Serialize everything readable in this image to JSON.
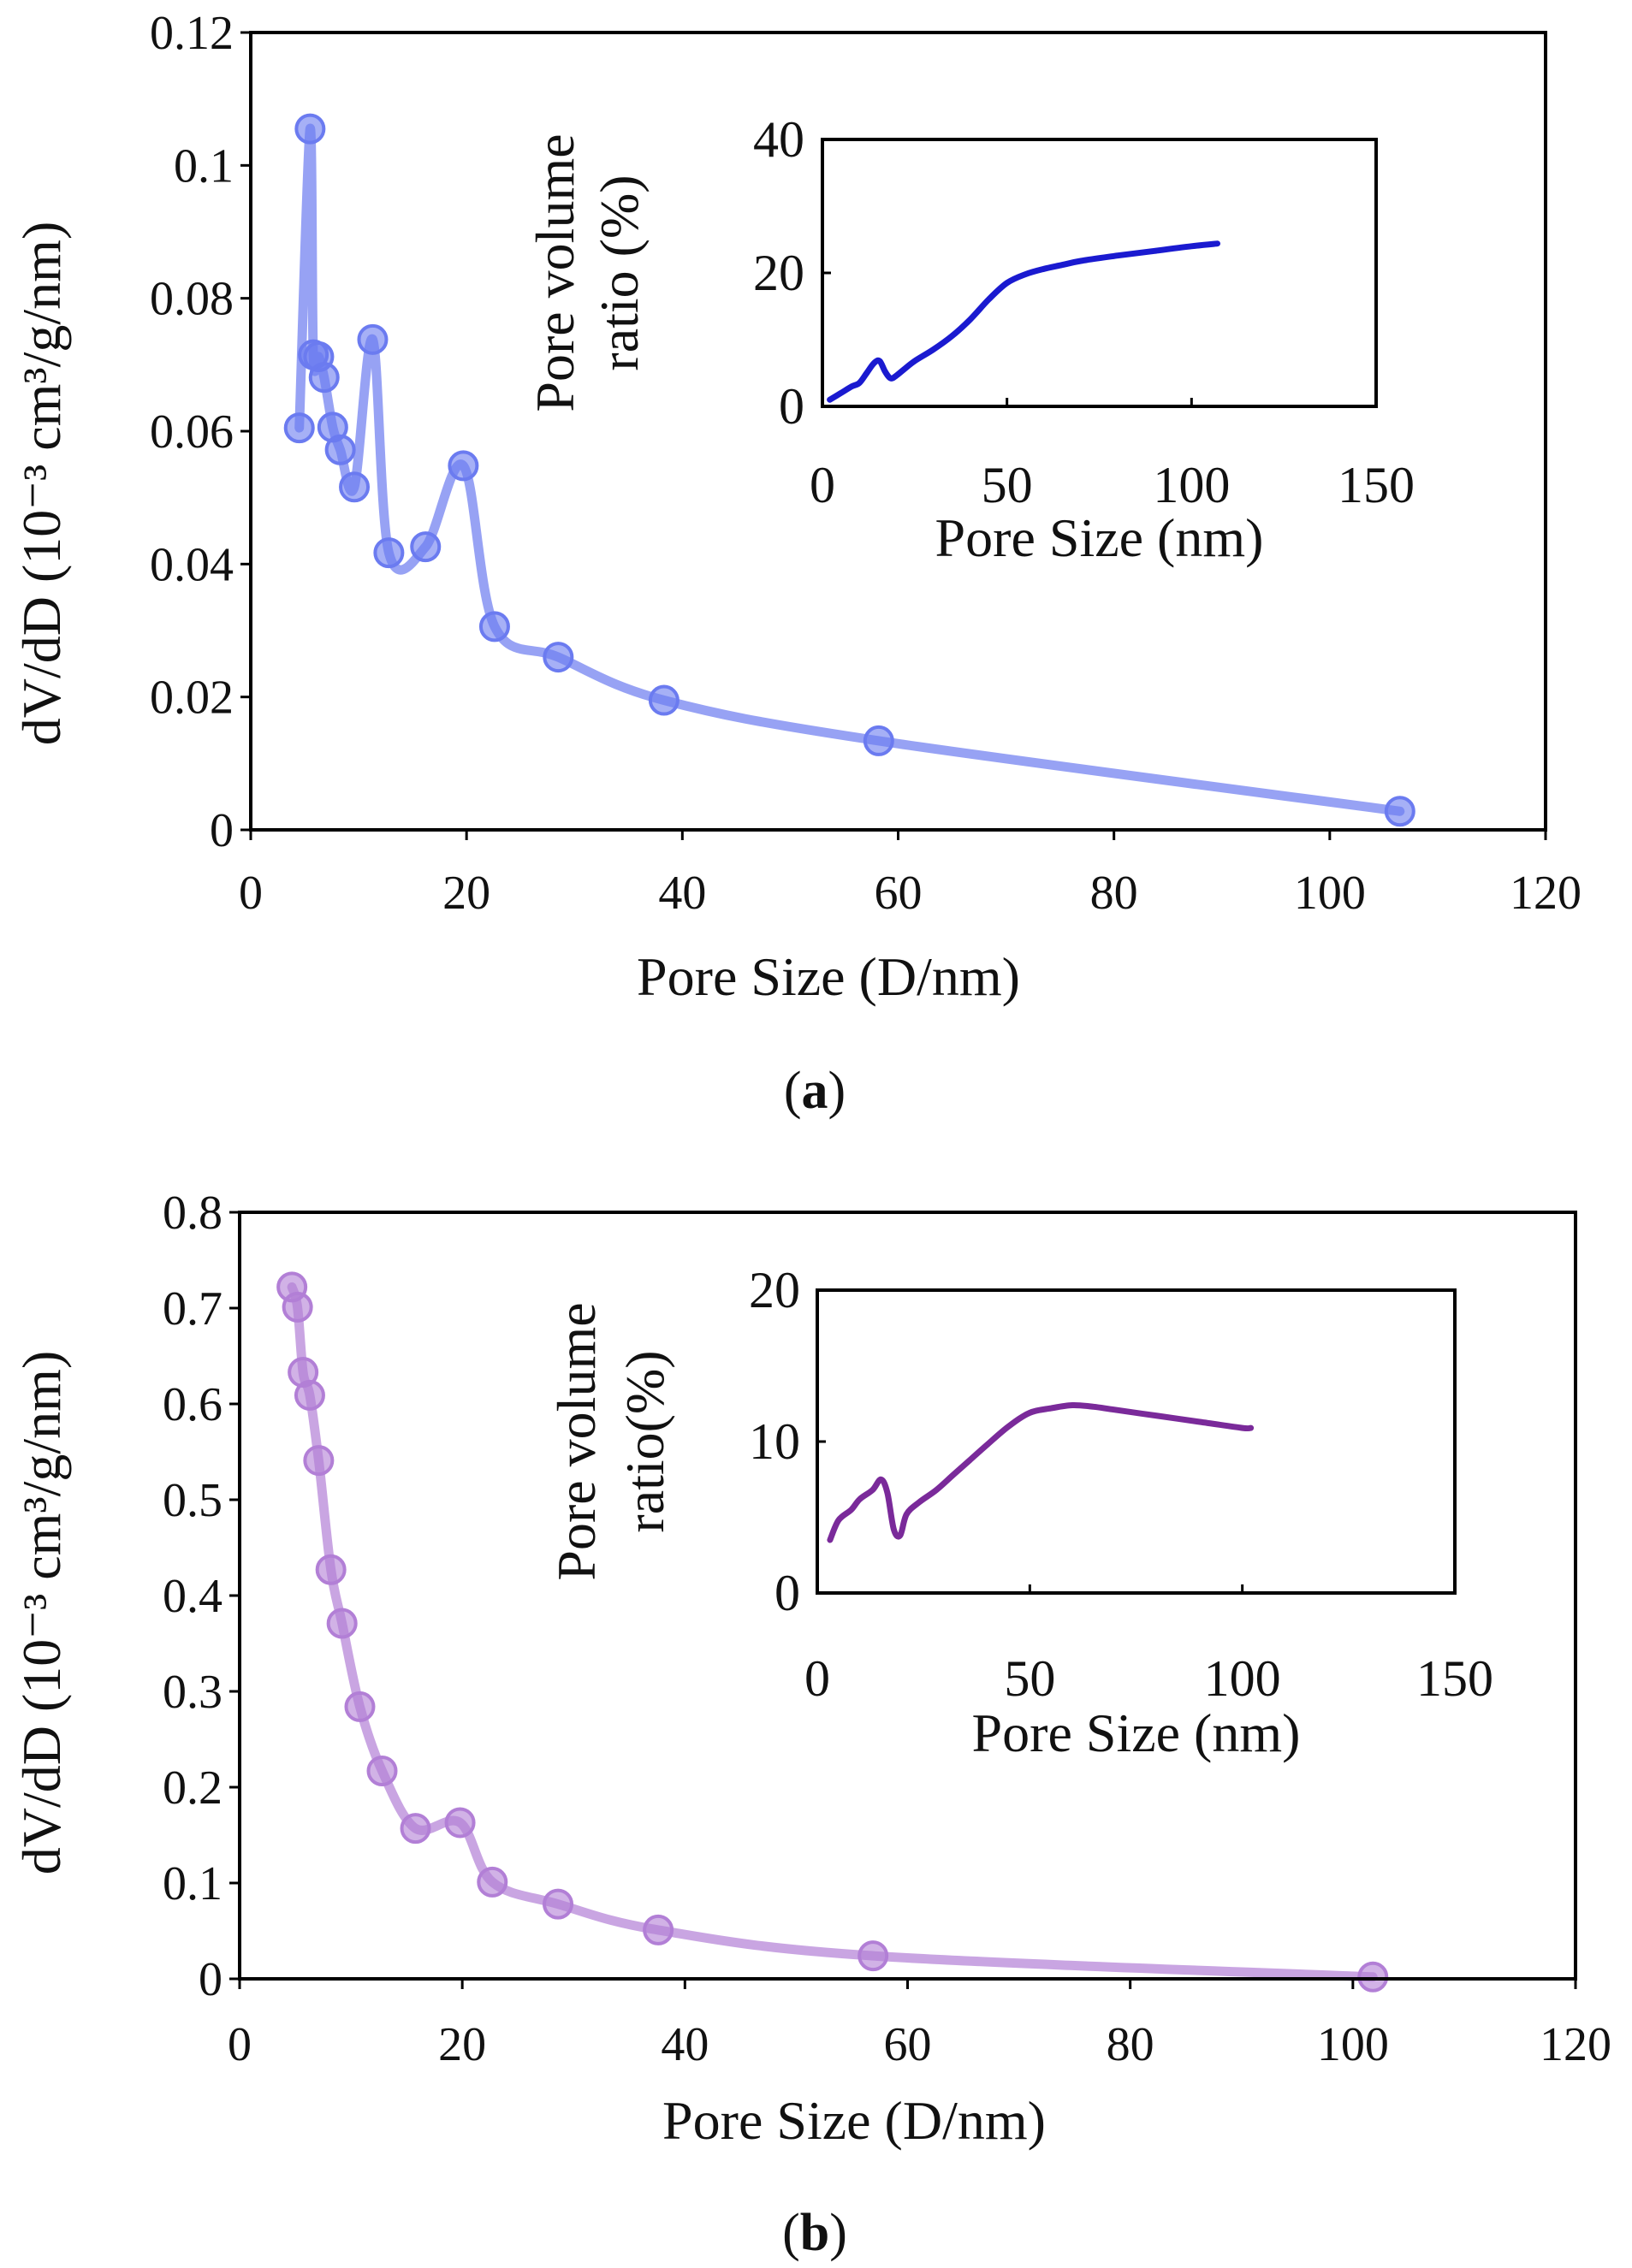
{
  "chart_data": [
    {
      "type": "line",
      "panel": "a",
      "panel_label": "a",
      "xlabel": "Pore Size (D/nm)",
      "ylabel": "dV/dD (10⁻³ cm³/g/nm)",
      "xlim": [
        0,
        120
      ],
      "ylim": [
        0,
        0.12
      ],
      "xticks": [
        0,
        20,
        40,
        60,
        80,
        100,
        120
      ],
      "yticks": [
        0,
        0.02,
        0.04,
        0.06,
        0.08,
        0.1,
        0.12
      ],
      "xtick_labels": [
        "0",
        "20",
        "40",
        "60",
        "80",
        "100",
        "120"
      ],
      "ytick_labels": [
        "0",
        "0.02",
        "0.04",
        "0.06",
        "0.08",
        "0.1",
        "0.12"
      ],
      "color": "#6b7bf0",
      "series": [
        {
          "name": "dV/dD",
          "x": [
            4.5,
            5.5,
            5.8,
            6.3,
            6.8,
            7.6,
            8.3,
            9.6,
            11.3,
            12.8,
            16.2,
            19.7,
            22.6,
            28.5,
            38.3,
            58.2,
            106.5
          ],
          "y": [
            0.0605,
            0.1055,
            0.0715,
            0.0712,
            0.0681,
            0.0606,
            0.0572,
            0.0516,
            0.0738,
            0.0417,
            0.0426,
            0.0548,
            0.0306,
            0.026,
            0.0195,
            0.0134,
            0.0028
          ]
        }
      ],
      "inset": {
        "xlabel": "Pore Size (nm)",
        "ylabel_lines": [
          "Pore volume",
          "ratio (%)"
        ],
        "xlim": [
          0,
          150
        ],
        "ylim": [
          0,
          40
        ],
        "xticks": [
          0,
          50,
          100,
          150
        ],
        "yticks": [
          0,
          20,
          40
        ],
        "xtick_labels": [
          "0",
          "50",
          "100",
          "150"
        ],
        "ytick_labels": [
          "0",
          "20",
          "40"
        ],
        "color": "#1a1ad0",
        "x": [
          2,
          5,
          8,
          10,
          12,
          14,
          15.5,
          17,
          18.5,
          20,
          22,
          25,
          30,
          35,
          40,
          45,
          50,
          55,
          60,
          65,
          70,
          80,
          90,
          100,
          107
        ],
        "y": [
          1,
          2,
          3,
          3.5,
          5,
          6.5,
          6.8,
          5.2,
          4.2,
          4.6,
          5.5,
          6.8,
          8.5,
          10.5,
          13,
          16,
          18.5,
          19.8,
          20.6,
          21.2,
          21.8,
          22.6,
          23.3,
          24,
          24.4
        ]
      }
    },
    {
      "type": "line",
      "panel": "b",
      "panel_label": "b",
      "xlabel": "Pore Size (D/nm)",
      "ylabel": "dV/dD (10⁻³ cm³/g/nm)",
      "xlim": [
        0,
        120
      ],
      "ylim": [
        0,
        0.8
      ],
      "xticks": [
        0,
        20,
        40,
        60,
        80,
        100,
        120
      ],
      "yticks": [
        0,
        0.1,
        0.2,
        0.3,
        0.4,
        0.5,
        0.6,
        0.7,
        0.8
      ],
      "xtick_labels": [
        "0",
        "20",
        "40",
        "60",
        "80",
        "100",
        "120"
      ],
      "ytick_labels": [
        "0",
        "0.1",
        "0.2",
        "0.3",
        "0.4",
        "0.5",
        "0.6",
        "0.7",
        "0.8"
      ],
      "color": "#b27fd6",
      "series": [
        {
          "name": "dV/dD",
          "x": [
            4.7,
            5.2,
            5.7,
            6.3,
            7.1,
            8.2,
            9.2,
            10.8,
            12.8,
            15.8,
            19.8,
            22.7,
            28.6,
            37.6,
            56.9,
            101.8
          ],
          "y": [
            0.722,
            0.701,
            0.633,
            0.609,
            0.541,
            0.427,
            0.371,
            0.284,
            0.217,
            0.157,
            0.163,
            0.101,
            0.078,
            0.051,
            0.024,
            0.002
          ]
        }
      ],
      "inset": {
        "xlabel": "Pore Size (nm)",
        "ylabel_lines": [
          "Pore volume",
          "ratio(%)"
        ],
        "xlim": [
          0,
          150
        ],
        "ylim": [
          0,
          20
        ],
        "xticks": [
          0,
          50,
          100,
          150
        ],
        "yticks": [
          0,
          10,
          20
        ],
        "xtick_labels": [
          "0",
          "50",
          "100",
          "150"
        ],
        "ytick_labels": [
          "0",
          "10",
          "20"
        ],
        "color": "#7a2a9a",
        "x": [
          3,
          5,
          8,
          10,
          13,
          15,
          16.5,
          18,
          19.5,
          21,
          24,
          28,
          32,
          36,
          40,
          45,
          50,
          55,
          60,
          65,
          70,
          80,
          90,
          100,
          102
        ],
        "y": [
          3.5,
          4.8,
          5.5,
          6.2,
          6.8,
          7.5,
          6.6,
          4.2,
          3.8,
          5.2,
          6,
          6.8,
          7.8,
          8.8,
          9.8,
          11,
          11.9,
          12.2,
          12.4,
          12.3,
          12.1,
          11.7,
          11.3,
          10.9,
          10.9
        ]
      }
    }
  ]
}
